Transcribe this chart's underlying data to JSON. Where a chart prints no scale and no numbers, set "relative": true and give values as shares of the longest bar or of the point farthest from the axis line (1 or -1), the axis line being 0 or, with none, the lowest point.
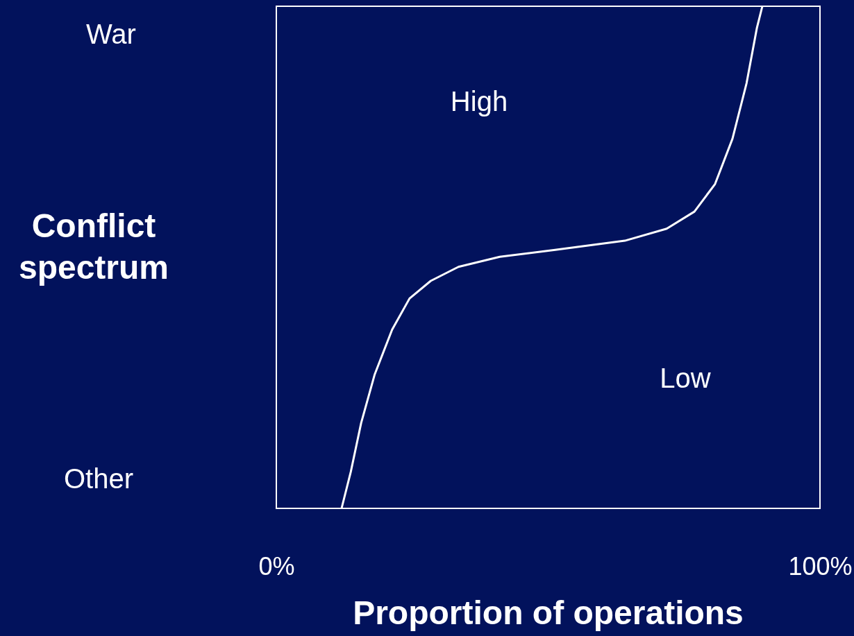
{
  "chart_data": {
    "type": "line",
    "xlabel": "Proportion of operations",
    "ylabel": "Conflict spectrum",
    "relative": true,
    "xlim": [
      0,
      100
    ],
    "xticks": [
      {
        "value": 0,
        "label": "0%"
      },
      {
        "value": 100,
        "label": "100%"
      }
    ],
    "x": [
      12.0,
      13.7,
      15.6,
      18.1,
      21.3,
      24.5,
      28.4,
      33.5,
      41.1,
      51.3,
      64.1,
      71.8,
      76.9,
      80.7,
      83.9,
      86.5,
      88.4,
      89.4
    ],
    "series": [
      {
        "color": "#ffffff",
        "values": [
          0,
          0.073,
          0.17,
          0.267,
          0.356,
          0.418,
          0.453,
          0.481,
          0.501,
          0.515,
          0.533,
          0.557,
          0.591,
          0.646,
          0.736,
          0.847,
          0.957,
          1
        ]
      }
    ],
    "annotations": [
      "War",
      "Other",
      "High",
      "Low"
    ],
    "marker": "none",
    "line_style": "solid"
  }
}
